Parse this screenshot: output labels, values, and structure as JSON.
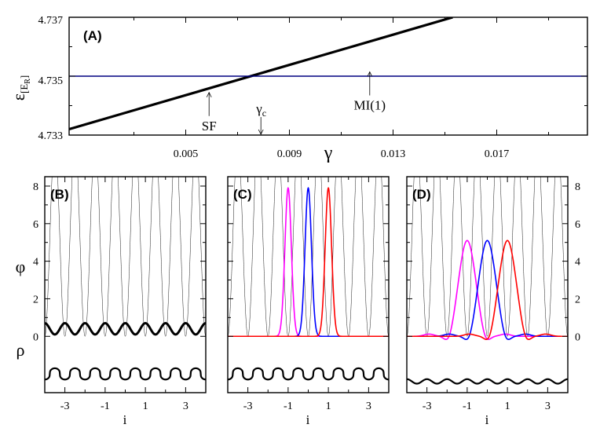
{
  "chart_data": [
    {
      "panel": "(A)",
      "type": "line",
      "ylabel_symbol": "ε",
      "ylabel_sub": "[E",
      "ylabel_subsub": "R",
      "ylabel_subend": "]",
      "xlabel": "γ",
      "xlim": [
        0.0005,
        0.0205
      ],
      "ylim": [
        4.733,
        4.737
      ],
      "xticks": [
        "0.005",
        "0.009",
        "0.013",
        "0.017"
      ],
      "xtick_values": [
        0.005,
        0.009,
        0.013,
        0.017
      ],
      "yticks": [
        "4.733",
        "4.735",
        "4.737"
      ],
      "ytick_values": [
        4.733,
        4.735,
        4.737
      ],
      "series": [
        {
          "color": "#000000",
          "x": [
            0.0005,
            0.0153
          ],
          "y": [
            4.7332,
            4.737
          ]
        },
        {
          "color": "#000080",
          "x": [
            0.0005,
            0.0205
          ],
          "y": [
            4.735,
            4.735
          ]
        }
      ],
      "annotations": [
        {
          "text": "SF",
          "x": 0.0059,
          "y_tip": 4.7345,
          "arrow": "up"
        },
        {
          "text": "γ",
          "sub": "c",
          "x": 0.0079,
          "y_tip": 4.733,
          "arrow": "down"
        },
        {
          "text": "MI(1)",
          "x": 0.0121,
          "y_tip": 4.7352,
          "arrow": "up"
        }
      ]
    },
    {
      "panel": "(B)",
      "type": "line",
      "xlabel": "i",
      "ylabel_top": "φ",
      "ylabel_bottom": "ρ",
      "xlim": [
        -4,
        4
      ],
      "ylim": [
        -3,
        8.5
      ],
      "xticks": [
        "-3",
        "-1",
        "1",
        "3"
      ],
      "xtick_values": [
        -3,
        -1,
        1,
        3
      ],
      "yticks": [
        "0",
        "2",
        "4",
        "6",
        "8"
      ],
      "ytick_values": [
        0,
        2,
        4,
        6,
        8
      ],
      "potential_depth": 8,
      "wannier": [],
      "phi_uniform": {
        "mean": 0.4,
        "amplitude": 0.3
      },
      "rho": {
        "offset": -2.0,
        "amplitude": 0.3,
        "shape": "flat-top"
      }
    },
    {
      "panel": "(C)",
      "type": "line",
      "xlabel": "i",
      "xlim": [
        -4,
        4
      ],
      "ylim": [
        -3,
        8.5
      ],
      "xticks": [
        "-3",
        "-1",
        "1",
        "3"
      ],
      "xtick_values": [
        -3,
        -1,
        1,
        3
      ],
      "potential_depth": 8,
      "wannier": [
        {
          "color": "#ff00ff",
          "center": -1,
          "peak": 7.9,
          "width": 0.16,
          "dip": 0
        },
        {
          "color": "#0000ff",
          "center": 0,
          "peak": 7.9,
          "width": 0.16,
          "dip": 0
        },
        {
          "color": "#ff0000",
          "center": 1,
          "peak": 7.9,
          "width": 0.16,
          "dip": 0
        }
      ],
      "rho": {
        "offset": -2.0,
        "amplitude": 0.3,
        "shape": "flat-top"
      }
    },
    {
      "panel": "(D)",
      "type": "line",
      "xlabel": "i",
      "xlim": [
        -4,
        4
      ],
      "ylim": [
        -3,
        8.5
      ],
      "xticks": [
        "-3",
        "-1",
        "1",
        "3"
      ],
      "xtick_values": [
        -3,
        -1,
        1,
        3
      ],
      "yticks": [
        "0",
        "2",
        "4",
        "6",
        "8"
      ],
      "ytick_values": [
        0,
        2,
        4,
        6,
        8
      ],
      "potential_depth": 8,
      "wannier": [
        {
          "color": "#ff00ff",
          "center": -1,
          "peak": 5.1,
          "width": 0.42,
          "dip": 0.5
        },
        {
          "color": "#0000ff",
          "center": 0,
          "peak": 5.1,
          "width": 0.42,
          "dip": 0.5
        },
        {
          "color": "#ff0000",
          "center": 1,
          "peak": 5.1,
          "width": 0.42,
          "dip": 0.5
        }
      ],
      "rho": {
        "offset": -2.4,
        "amplitude": 0.12,
        "shape": "sine"
      }
    }
  ]
}
